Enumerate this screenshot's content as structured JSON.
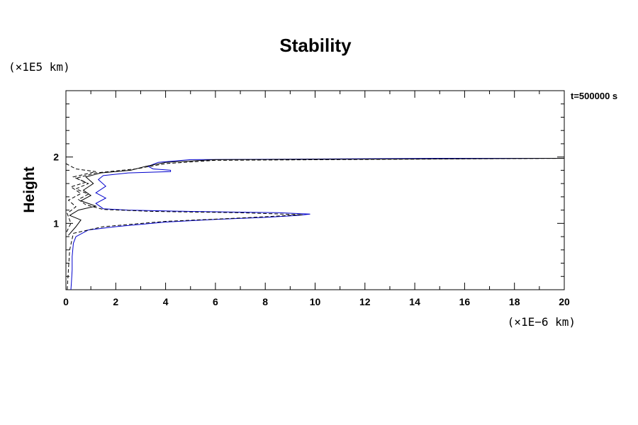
{
  "chart_data": {
    "type": "line",
    "title": "Stability",
    "xlabel": "",
    "ylabel": "Height",
    "x_unit": "(×1E−6 km)",
    "y_unit": "(×1E5 km)",
    "annotation": "t=500000 s",
    "xlim": [
      0,
      20
    ],
    "ylim": [
      0,
      3
    ],
    "xticks": [
      0,
      2,
      4,
      6,
      8,
      10,
      12,
      14,
      16,
      18,
      20
    ],
    "yticks": [
      1,
      2
    ],
    "grid": false,
    "legend": "none",
    "series": [
      {
        "color": "#0000cc",
        "style": "solid",
        "points": [
          [
            0.2,
            0.0
          ],
          [
            0.22,
            0.1
          ],
          [
            0.25,
            0.3
          ],
          [
            0.25,
            0.5
          ],
          [
            0.3,
            0.7
          ],
          [
            0.4,
            0.8
          ],
          [
            0.9,
            0.9
          ],
          [
            2.0,
            0.95
          ],
          [
            4.0,
            1.02
          ],
          [
            6.0,
            1.06
          ],
          [
            8.0,
            1.09
          ],
          [
            9.3,
            1.12
          ],
          [
            9.8,
            1.14
          ],
          [
            8.5,
            1.16
          ],
          [
            5.0,
            1.18
          ],
          [
            2.5,
            1.2
          ],
          [
            1.5,
            1.22
          ],
          [
            1.2,
            1.3
          ],
          [
            1.6,
            1.38
          ],
          [
            1.2,
            1.46
          ],
          [
            1.6,
            1.56
          ],
          [
            1.3,
            1.66
          ],
          [
            1.5,
            1.72
          ],
          [
            2.5,
            1.76
          ],
          [
            4.2,
            1.78
          ],
          [
            4.2,
            1.8
          ],
          [
            3.5,
            1.82
          ],
          [
            3.3,
            1.86
          ],
          [
            3.7,
            1.92
          ],
          [
            5.0,
            1.96
          ],
          [
            10.0,
            1.97
          ],
          [
            15.0,
            1.98
          ],
          [
            20.0,
            1.98
          ]
        ]
      },
      {
        "color": "#000000",
        "style": "solid",
        "points": [
          [
            0.1,
            0.82
          ],
          [
            0.4,
            0.95
          ],
          [
            0.6,
            1.05
          ],
          [
            0.15,
            1.12
          ],
          [
            0.5,
            1.2
          ],
          [
            1.2,
            1.26
          ],
          [
            0.6,
            1.34
          ],
          [
            1.0,
            1.42
          ],
          [
            0.7,
            1.5
          ],
          [
            1.1,
            1.6
          ],
          [
            0.8,
            1.7
          ],
          [
            1.4,
            1.76
          ],
          [
            2.6,
            1.8
          ],
          [
            3.2,
            1.86
          ],
          [
            4.0,
            1.92
          ],
          [
            6.0,
            1.96
          ],
          [
            20.0,
            1.98
          ]
        ]
      },
      {
        "color": "#000000",
        "style": "dashed",
        "points": [
          [
            0.05,
            0.0
          ],
          [
            0.1,
            0.3
          ],
          [
            0.15,
            0.6
          ],
          [
            0.3,
            0.85
          ],
          [
            1.5,
            0.95
          ],
          [
            4.0,
            1.03
          ],
          [
            7.0,
            1.08
          ],
          [
            9.5,
            1.13
          ],
          [
            7.0,
            1.16
          ],
          [
            3.5,
            1.18
          ],
          [
            1.5,
            1.21
          ],
          [
            0.8,
            1.28
          ],
          [
            0.5,
            1.36
          ],
          [
            0.9,
            1.44
          ],
          [
            0.4,
            1.52
          ],
          [
            0.9,
            1.6
          ],
          [
            0.4,
            1.68
          ],
          [
            1.2,
            1.76
          ],
          [
            2.8,
            1.82
          ],
          [
            4.0,
            1.9
          ],
          [
            6.0,
            1.95
          ],
          [
            20.0,
            1.98
          ]
        ]
      },
      {
        "color": "#000000",
        "style": "dashed",
        "points": [
          [
            0.0,
            1.9
          ],
          [
            0.4,
            1.82
          ],
          [
            1.2,
            1.78
          ],
          [
            0.3,
            1.7
          ],
          [
            0.8,
            1.62
          ],
          [
            0.2,
            1.55
          ],
          [
            0.6,
            1.45
          ],
          [
            0.1,
            1.35
          ],
          [
            0.4,
            1.25
          ],
          [
            0.05,
            1.15
          ],
          [
            0.2,
            1.0
          ],
          [
            0.0,
            0.85
          ]
        ]
      }
    ]
  }
}
